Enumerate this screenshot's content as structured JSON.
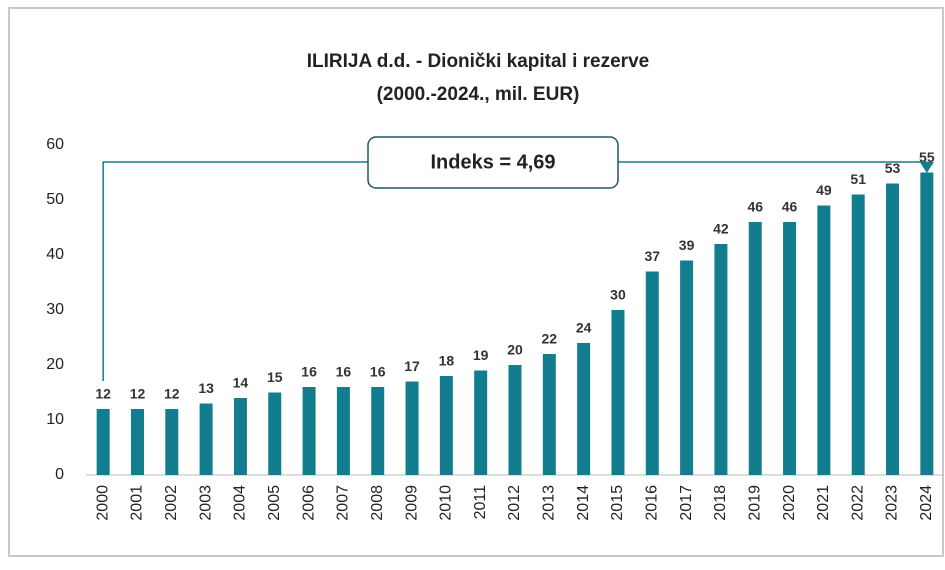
{
  "chart_data": {
    "type": "bar",
    "title": "ILIRIJA d.d. - Dionički kapital i rezerve",
    "subtitle": "(2000.-2024., mil. EUR)",
    "annotation": "Indeks = 4,69",
    "categories": [
      "2000",
      "2001",
      "2002",
      "2003",
      "2004",
      "2005",
      "2006",
      "2007",
      "2008",
      "2009",
      "2010",
      "2011",
      "2012",
      "2013",
      "2014",
      "2015",
      "2016",
      "2017",
      "2018",
      "2019",
      "2020",
      "2021",
      "2022",
      "2023",
      "2024"
    ],
    "values": [
      12,
      12,
      12,
      13,
      14,
      15,
      16,
      16,
      16,
      17,
      18,
      19,
      20,
      22,
      24,
      30,
      37,
      39,
      42,
      46,
      46,
      49,
      51,
      53,
      55
    ],
    "color": "#127d8e",
    "ylim": [
      0,
      60
    ],
    "yticks": [
      0,
      10,
      20,
      30,
      40,
      50,
      60
    ],
    "grid": false
  }
}
